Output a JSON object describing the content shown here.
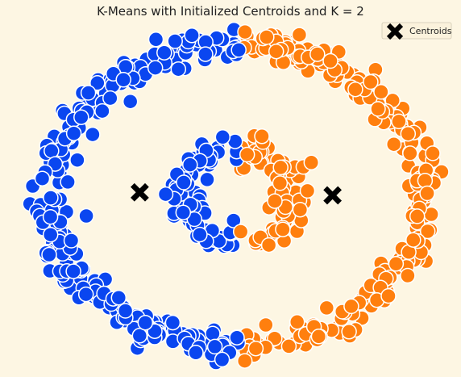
{
  "chart_data": {
    "type": "scatter",
    "title": "K-Means with Initialized Centroids and K = 2",
    "xlabel": "",
    "ylabel": "",
    "xlim": [
      -1.1,
      1.1
    ],
    "ylim": [
      -1.1,
      1.1
    ],
    "grid": false,
    "axes_visible": false,
    "legend": {
      "position": "top-right",
      "entries": [
        "Centroids"
      ]
    },
    "dataset": {
      "shape": "two concentric rings",
      "outer_ring_radius": 1.0,
      "inner_ring_radius": 0.3,
      "outer_points": 500,
      "inner_points": 150,
      "noise": 0.05
    },
    "series": [
      {
        "cluster": 0,
        "color": "#0a46f0",
        "region": "x < split"
      },
      {
        "cluster": 1,
        "color": "#ff7f0e",
        "region": "x >= split"
      }
    ],
    "cluster_split_x": 0.02,
    "centroids": {
      "name": "Centroids",
      "marker": "X",
      "color": "#000000",
      "points": [
        {
          "x": -0.52,
          "y": 0.02
        },
        {
          "x": 0.52,
          "y": 0.0
        }
      ]
    }
  }
}
